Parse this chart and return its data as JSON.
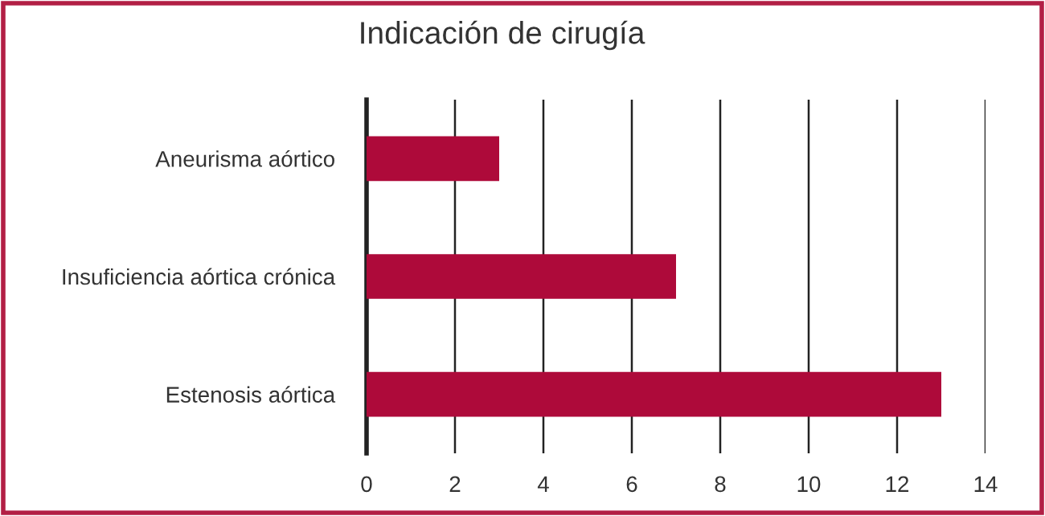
{
  "chart_data": {
    "type": "bar",
    "orientation": "horizontal",
    "title": "Indicación de cirugía",
    "categories": [
      "Aneurisma aórtico",
      "Insuficiencia aórtica crónica",
      "Estenosis aórtica"
    ],
    "values": [
      3,
      7,
      13
    ],
    "color": "#ae0a3a",
    "xlim": [
      0,
      14
    ],
    "xticks": [
      0,
      2,
      4,
      6,
      8,
      10,
      12,
      14
    ],
    "grid": "x",
    "legend": false
  }
}
